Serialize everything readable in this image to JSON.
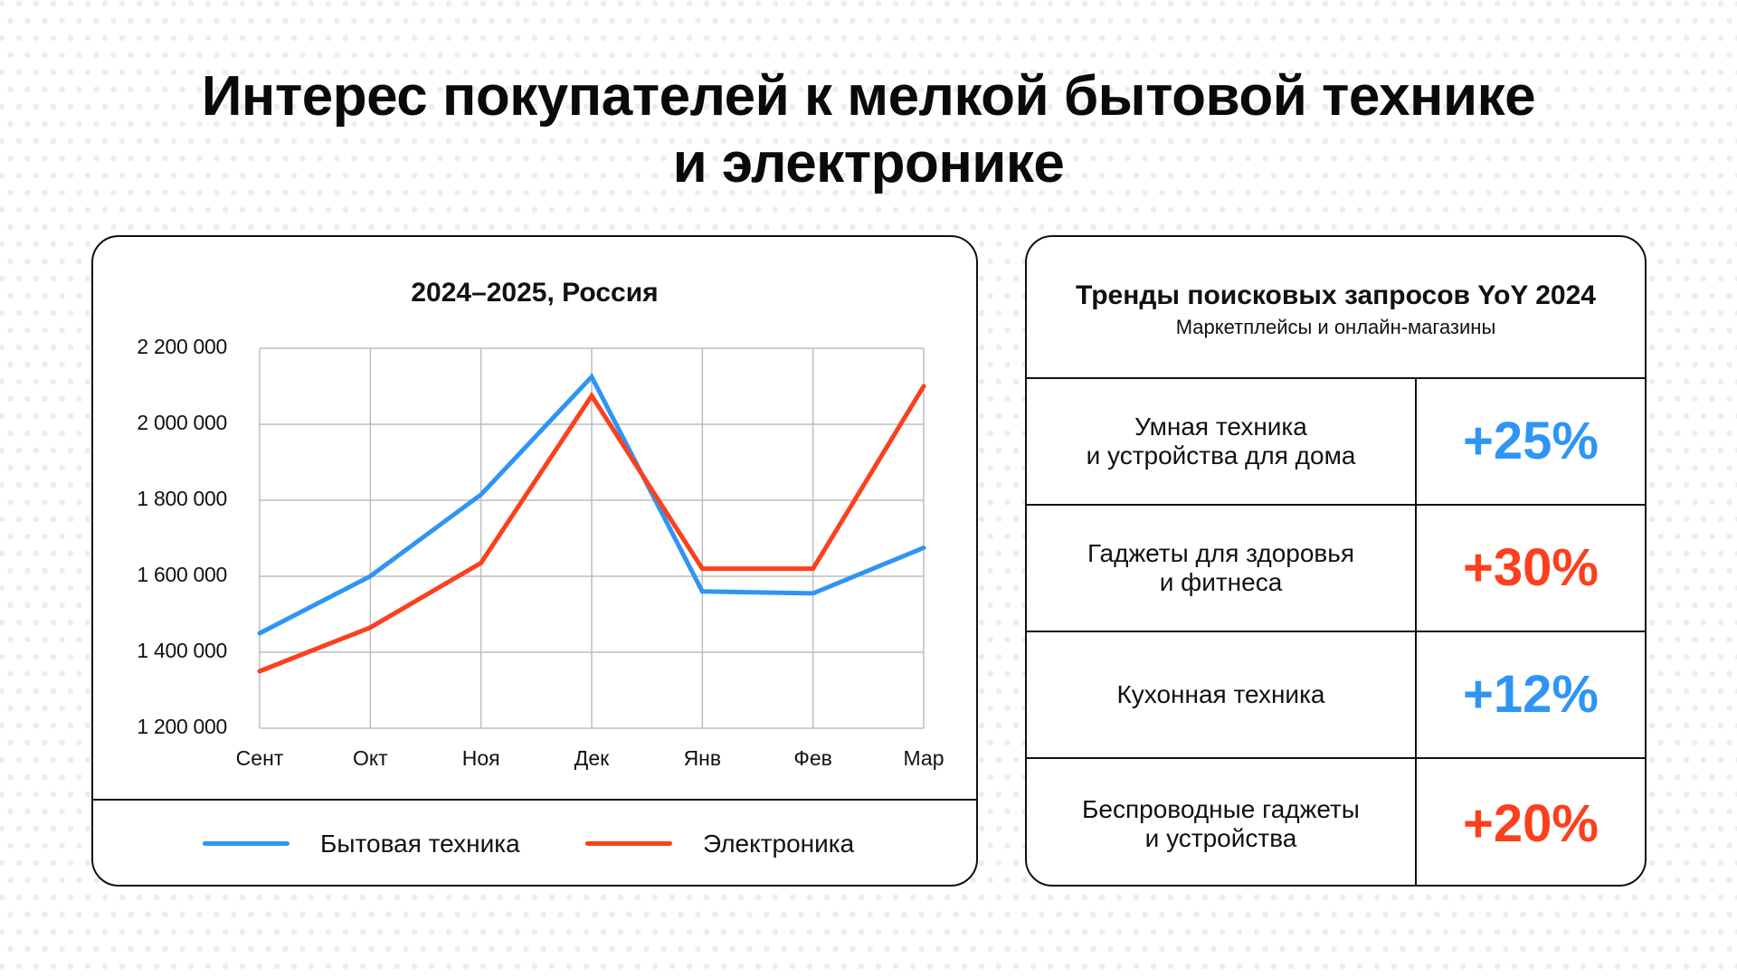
{
  "page": {
    "title_line1": "Интерес покупателей к мелкой бытовой технике",
    "title_line2": "и электронике"
  },
  "colors": {
    "blue": "#2f95f4",
    "red": "#fb401e",
    "border": "#111111",
    "grid": "#bdbdbd"
  },
  "chart_card": {
    "title": "2024–2025, Россия",
    "legend": [
      {
        "label": "Бытовая техника",
        "color": "#2f95f4"
      },
      {
        "label": "Электроника",
        "color": "#fb401e"
      }
    ]
  },
  "chart_data": {
    "type": "line",
    "title": "2024–2025, Россия",
    "xlabel": "",
    "ylabel": "",
    "categories": [
      "Сент",
      "Окт",
      "Ноя",
      "Дек",
      "Янв",
      "Фев",
      "Мар"
    ],
    "series": [
      {
        "name": "Бытовая техника",
        "color": "#2f95f4",
        "values": [
          1450000,
          1600000,
          1815000,
          2125000,
          1560000,
          1555000,
          1675000
        ]
      },
      {
        "name": "Электроника",
        "color": "#fb401e",
        "values": [
          1350000,
          1465000,
          1635000,
          2075000,
          1620000,
          1620000,
          2100000
        ]
      }
    ],
    "ylim": [
      1200000,
      2200000
    ],
    "yticks": [
      2200000,
      2000000,
      1800000,
      1600000,
      1400000,
      1200000
    ],
    "ytick_labels": [
      "2 200 000",
      "2 000 000",
      "1 800 000",
      "1 600 000",
      "1 400 000",
      "1 200 000"
    ],
    "grid": true,
    "legend_position": "bottom"
  },
  "trends": {
    "title": "Тренды поисковых запросов YoY 2024",
    "subtitle": "Маркетплейсы и онлайн-магазины",
    "rows": [
      {
        "line1": "Умная техника",
        "line2": "и устройства для дома",
        "value": "+25%",
        "color": "#2f95f4"
      },
      {
        "line1": "Гаджеты для здоровья",
        "line2": "и фитнеса",
        "value": "+30%",
        "color": "#fb401e"
      },
      {
        "line1": "Кухонная техника",
        "line2": "",
        "value": "+12%",
        "color": "#2f95f4"
      },
      {
        "line1": "Беспроводные гаджеты",
        "line2": "и устройства",
        "value": "+20%",
        "color": "#fb401e"
      }
    ]
  }
}
